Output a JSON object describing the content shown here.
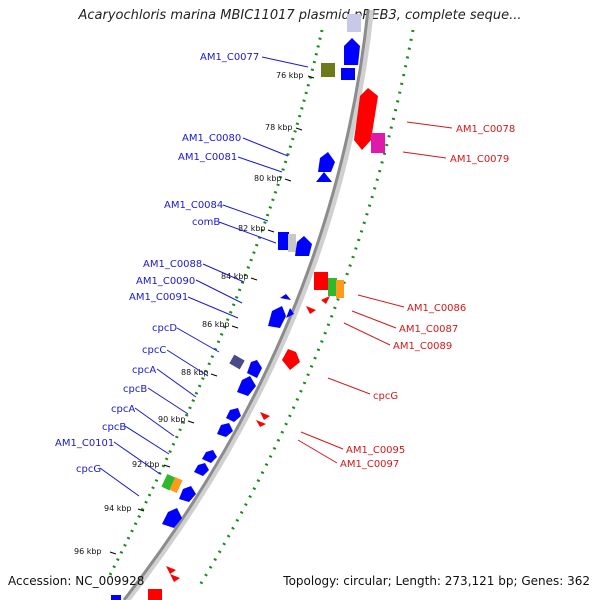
{
  "title": "Acaryochloris marina MBIC11017 plasmid pREB3, complete seque...",
  "footer": {
    "accession": "Accession: NC_009928",
    "summary": "Topology: circular; Length: 273,121 bp; Genes: 362"
  },
  "kbp_ticks": [
    "76 kbp",
    "78 kbp",
    "80 kbp",
    "82 kbp",
    "84 kbp",
    "86 kbp",
    "88 kbp",
    "90 kbp",
    "92 kbp",
    "94 kbp",
    "96 kbp"
  ],
  "genes_left": [
    "AM1_C0077",
    "AM1_C0080",
    "AM1_C0081",
    "AM1_C0084",
    "comB",
    "AM1_C0088",
    "AM1_C0090",
    "AM1_C0091",
    "cpcD",
    "cpcC",
    "cpcA",
    "cpcB",
    "cpcA",
    "cpcB",
    "AM1_C0101",
    "cpcG"
  ],
  "genes_right": [
    "AM1_C0078",
    "AM1_C0079",
    "AM1_C0086",
    "AM1_C0087",
    "AM1_C0089",
    "cpcG",
    "AM1_C0095",
    "AM1_C0097"
  ],
  "colors": {
    "forward_gene": "#0000ff",
    "reverse_gene": "#ff0000",
    "label_blue": "#1a1ad0",
    "label_red": "#d01a1a",
    "backbone": "#8c8c8c",
    "gc_dots": "#1a8c1a"
  }
}
